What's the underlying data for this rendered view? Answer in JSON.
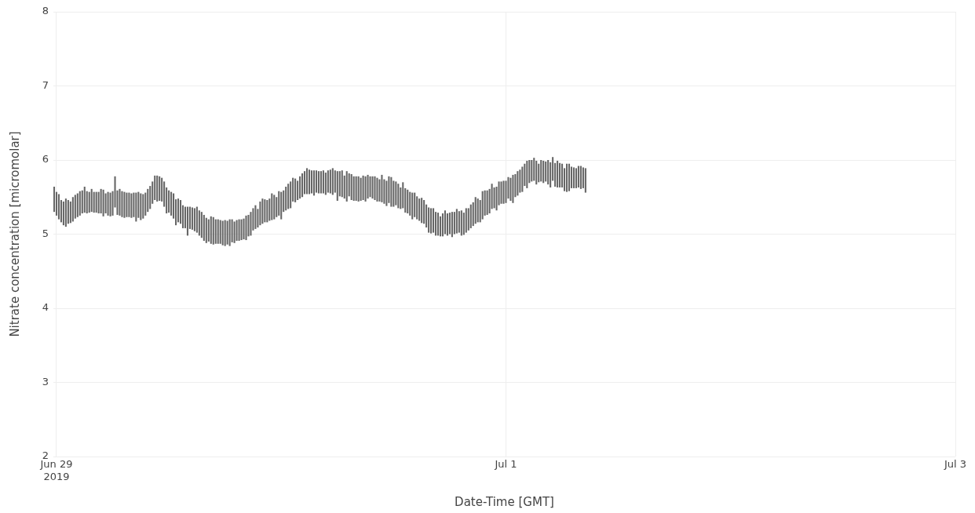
{
  "chart_data": {
    "type": "bar",
    "xlabel": "Date-Time [GMT]",
    "ylabel": "Nitrate concentration [micromolar]",
    "color": "#666666",
    "grid": true,
    "xlim": [
      "2019-06-28T23:40",
      "2019-07-03T00:00"
    ],
    "xticks": [
      {
        "value": "2019-06-29",
        "label": "Jun 29\n2019"
      },
      {
        "value": "2019-07-01",
        "label": "Jul 1"
      },
      {
        "value": "2019-07-03",
        "label": "Jul 3"
      }
    ],
    "ylim": [
      2,
      8
    ],
    "yticks": [
      2,
      3,
      4,
      5,
      6,
      7,
      8
    ],
    "x": [
      "2019-06-28T23:45",
      "2019-06-29T00:00",
      "2019-06-29T00:15",
      "2019-06-29T00:30",
      "2019-06-29T00:45",
      "2019-06-29T01:00",
      "2019-06-29T01:15",
      "2019-06-29T01:30",
      "2019-06-29T01:45",
      "2019-06-29T02:00",
      "2019-06-29T02:15",
      "2019-06-29T02:30",
      "2019-06-29T02:45",
      "2019-06-29T03:00",
      "2019-06-29T03:15",
      "2019-06-29T03:30",
      "2019-06-29T03:45",
      "2019-06-29T04:00",
      "2019-06-29T04:15",
      "2019-06-29T04:30",
      "2019-06-29T04:45",
      "2019-06-29T05:00",
      "2019-06-29T05:15",
      "2019-06-29T05:30",
      "2019-06-29T05:45",
      "2019-06-29T06:00",
      "2019-06-29T06:15",
      "2019-06-29T06:30",
      "2019-06-29T06:45",
      "2019-06-29T07:00",
      "2019-06-29T07:15",
      "2019-06-29T07:30",
      "2019-06-29T07:45",
      "2019-06-29T08:00",
      "2019-06-29T08:15",
      "2019-06-29T08:30",
      "2019-06-29T08:45",
      "2019-06-29T09:00",
      "2019-06-29T09:15",
      "2019-06-29T09:30",
      "2019-06-29T09:45",
      "2019-06-29T10:00",
      "2019-06-29T10:15",
      "2019-06-29T10:30",
      "2019-06-29T10:45",
      "2019-06-29T11:00",
      "2019-06-29T11:15",
      "2019-06-29T11:30",
      "2019-06-29T11:45",
      "2019-06-29T12:00",
      "2019-06-29T12:15",
      "2019-06-29T12:30",
      "2019-06-29T12:45",
      "2019-06-29T13:00",
      "2019-06-29T13:15",
      "2019-06-29T13:30",
      "2019-06-29T13:45",
      "2019-06-29T14:00",
      "2019-06-29T14:15",
      "2019-06-29T14:30",
      "2019-06-29T14:45",
      "2019-06-29T15:00",
      "2019-06-29T15:15",
      "2019-06-29T15:30",
      "2019-06-29T15:45",
      "2019-06-29T16:00",
      "2019-06-29T16:15",
      "2019-06-29T16:30",
      "2019-06-29T16:45",
      "2019-06-29T17:00",
      "2019-06-29T17:15",
      "2019-06-29T17:30",
      "2019-06-29T17:45",
      "2019-06-29T18:00",
      "2019-06-29T18:15",
      "2019-06-29T18:30",
      "2019-06-29T18:45",
      "2019-06-29T19:00",
      "2019-06-29T19:15",
      "2019-06-29T19:30",
      "2019-06-29T19:45",
      "2019-06-29T20:00",
      "2019-06-29T20:15",
      "2019-06-29T20:30",
      "2019-06-29T20:45",
      "2019-06-29T21:00",
      "2019-06-29T21:15",
      "2019-06-29T21:30",
      "2019-06-29T21:45",
      "2019-06-29T22:00",
      "2019-06-29T22:15",
      "2019-06-29T22:30",
      "2019-06-29T22:45",
      "2019-06-29T23:00",
      "2019-06-29T23:15",
      "2019-06-29T23:30",
      "2019-06-29T23:45",
      "2019-06-30T00:00",
      "2019-06-30T00:15",
      "2019-06-30T00:30",
      "2019-06-30T00:45",
      "2019-06-30T01:00",
      "2019-06-30T01:15",
      "2019-06-30T01:30",
      "2019-06-30T01:45",
      "2019-06-30T02:00",
      "2019-06-30T02:15",
      "2019-06-30T02:30",
      "2019-06-30T02:45",
      "2019-06-30T03:00",
      "2019-06-30T03:15",
      "2019-06-30T03:30",
      "2019-06-30T03:45",
      "2019-06-30T04:00",
      "2019-06-30T04:15",
      "2019-06-30T04:30",
      "2019-06-30T04:45",
      "2019-06-30T05:00",
      "2019-06-30T05:15",
      "2019-06-30T05:30",
      "2019-06-30T05:45",
      "2019-06-30T06:00",
      "2019-06-30T06:15",
      "2019-06-30T06:30",
      "2019-06-30T06:45",
      "2019-06-30T07:00",
      "2019-06-30T07:15",
      "2019-06-30T07:30",
      "2019-06-30T07:45",
      "2019-06-30T08:00",
      "2019-06-30T08:15",
      "2019-06-30T08:30",
      "2019-06-30T08:45",
      "2019-06-30T09:00",
      "2019-06-30T09:15",
      "2019-06-30T09:30",
      "2019-06-30T09:45",
      "2019-06-30T10:00",
      "2019-06-30T10:15",
      "2019-06-30T10:30",
      "2019-06-30T10:45",
      "2019-06-30T11:00",
      "2019-06-30T11:15",
      "2019-06-30T11:30",
      "2019-06-30T11:45",
      "2019-06-30T12:00",
      "2019-06-30T12:15",
      "2019-06-30T12:30",
      "2019-06-30T12:45",
      "2019-06-30T13:00",
      "2019-06-30T13:15",
      "2019-06-30T13:30",
      "2019-06-30T13:45",
      "2019-06-30T14:00",
      "2019-06-30T14:15",
      "2019-06-30T14:30",
      "2019-06-30T14:45",
      "2019-06-30T15:00",
      "2019-06-30T15:15",
      "2019-06-30T15:30",
      "2019-06-30T15:45",
      "2019-06-30T16:00",
      "2019-06-30T16:15",
      "2019-06-30T16:30",
      "2019-06-30T16:45",
      "2019-06-30T17:00",
      "2019-06-30T17:15",
      "2019-06-30T17:30",
      "2019-06-30T17:45",
      "2019-06-30T18:00",
      "2019-06-30T18:15",
      "2019-06-30T18:30",
      "2019-06-30T18:45",
      "2019-06-30T19:00",
      "2019-06-30T19:15",
      "2019-06-30T19:30",
      "2019-06-30T19:45",
      "2019-06-30T20:00",
      "2019-06-30T20:15",
      "2019-06-30T20:30",
      "2019-06-30T20:45",
      "2019-06-30T21:00",
      "2019-06-30T21:15",
      "2019-06-30T21:30",
      "2019-06-30T21:45",
      "2019-06-30T22:00",
      "2019-06-30T22:15",
      "2019-06-30T22:30",
      "2019-06-30T22:45",
      "2019-06-30T23:00",
      "2019-06-30T23:15",
      "2019-06-30T23:30",
      "2019-06-30T23:45",
      "2019-07-01T00:00",
      "2019-07-01T00:15",
      "2019-07-01T00:30",
      "2019-07-01T00:45",
      "2019-07-01T01:00",
      "2019-07-01T01:15",
      "2019-07-01T01:30",
      "2019-07-01T01:45",
      "2019-07-01T02:00",
      "2019-07-01T02:15",
      "2019-07-01T02:30",
      "2019-07-01T02:45",
      "2019-07-01T03:00",
      "2019-07-01T03:15",
      "2019-07-01T03:30",
      "2019-07-01T03:45",
      "2019-07-01T04:00",
      "2019-07-01T04:15",
      "2019-07-01T04:30",
      "2019-07-01T04:45",
      "2019-07-01T05:00",
      "2019-07-01T05:15",
      "2019-07-01T05:30",
      "2019-07-01T05:45",
      "2019-07-01T06:00",
      "2019-07-01T06:15",
      "2019-07-01T06:30",
      "2019-07-01T06:45",
      "2019-07-01T07:00",
      "2019-07-01T07:15",
      "2019-07-01T07:30",
      "2019-07-01T07:45",
      "2019-07-01T08:00",
      "2019-07-01T08:15",
      "2019-07-01T08:30"
    ],
    "base": [
      5.3,
      5.25,
      5.2,
      5.16,
      5.12,
      5.1,
      5.14,
      5.15,
      5.17,
      5.21,
      5.23,
      5.25,
      5.28,
      5.29,
      5.28,
      5.29,
      5.3,
      5.29,
      5.29,
      5.28,
      5.28,
      5.24,
      5.28,
      5.25,
      5.24,
      5.25,
      5.36,
      5.26,
      5.25,
      5.23,
      5.22,
      5.23,
      5.23,
      5.22,
      5.23,
      5.17,
      5.22,
      5.19,
      5.21,
      5.25,
      5.3,
      5.34,
      5.41,
      5.46,
      5.44,
      5.45,
      5.44,
      5.37,
      5.28,
      5.29,
      5.25,
      5.21,
      5.12,
      5.16,
      5.14,
      5.08,
      5.08,
      4.98,
      5.07,
      5.06,
      5.04,
      5.02,
      4.98,
      4.95,
      4.91,
      4.88,
      4.9,
      4.87,
      4.86,
      4.87,
      4.87,
      4.87,
      4.85,
      4.84,
      4.86,
      4.84,
      4.89,
      4.88,
      4.91,
      4.91,
      4.92,
      4.93,
      4.92,
      4.97,
      4.98,
      5.05,
      5.07,
      5.09,
      5.12,
      5.14,
      5.16,
      5.16,
      5.18,
      5.19,
      5.2,
      5.23,
      5.25,
      5.2,
      5.3,
      5.32,
      5.34,
      5.35,
      5.44,
      5.43,
      5.46,
      5.48,
      5.5,
      5.54,
      5.54,
      5.54,
      5.55,
      5.52,
      5.56,
      5.55,
      5.55,
      5.55,
      5.53,
      5.56,
      5.55,
      5.53,
      5.56,
      5.45,
      5.51,
      5.5,
      5.48,
      5.44,
      5.51,
      5.46,
      5.45,
      5.45,
      5.44,
      5.45,
      5.46,
      5.44,
      5.48,
      5.5,
      5.48,
      5.46,
      5.44,
      5.44,
      5.43,
      5.41,
      5.38,
      5.42,
      5.37,
      5.37,
      5.39,
      5.35,
      5.34,
      5.35,
      5.29,
      5.28,
      5.25,
      5.2,
      5.23,
      5.2,
      5.18,
      5.15,
      5.14,
      5.09,
      5.02,
      5.01,
      5.02,
      4.98,
      4.98,
      4.97,
      4.97,
      5.0,
      4.98,
      5.0,
      4.96,
      5.0,
      5.01,
      5.02,
      4.98,
      4.99,
      5.02,
      5.05,
      5.08,
      5.11,
      5.14,
      5.16,
      5.16,
      5.2,
      5.25,
      5.26,
      5.28,
      5.34,
      5.35,
      5.32,
      5.39,
      5.41,
      5.41,
      5.42,
      5.48,
      5.45,
      5.42,
      5.5,
      5.52,
      5.56,
      5.57,
      5.65,
      5.62,
      5.69,
      5.71,
      5.72,
      5.67,
      5.7,
      5.71,
      5.69,
      5.71,
      5.67,
      5.63,
      5.72,
      5.64,
      5.63,
      5.63,
      5.63,
      5.58,
      5.57,
      5.58,
      5.62,
      5.62,
      5.62,
      5.63,
      5.61,
      5.62,
      5.56
    ],
    "values": [
      0.34,
      0.32,
      0.34,
      0.3,
      0.32,
      0.38,
      0.32,
      0.29,
      0.33,
      0.32,
      0.32,
      0.33,
      0.31,
      0.35,
      0.3,
      0.28,
      0.31,
      0.28,
      0.28,
      0.29,
      0.33,
      0.36,
      0.27,
      0.32,
      0.32,
      0.33,
      0.42,
      0.33,
      0.36,
      0.35,
      0.35,
      0.33,
      0.33,
      0.33,
      0.33,
      0.39,
      0.35,
      0.36,
      0.33,
      0.31,
      0.31,
      0.31,
      0.3,
      0.33,
      0.35,
      0.33,
      0.32,
      0.34,
      0.35,
      0.3,
      0.32,
      0.34,
      0.35,
      0.32,
      0.32,
      0.31,
      0.29,
      0.39,
      0.3,
      0.3,
      0.31,
      0.35,
      0.34,
      0.35,
      0.35,
      0.34,
      0.3,
      0.37,
      0.37,
      0.33,
      0.33,
      0.32,
      0.33,
      0.35,
      0.32,
      0.36,
      0.31,
      0.29,
      0.28,
      0.29,
      0.28,
      0.28,
      0.33,
      0.29,
      0.32,
      0.3,
      0.32,
      0.25,
      0.32,
      0.34,
      0.31,
      0.3,
      0.3,
      0.36,
      0.33,
      0.27,
      0.33,
      0.37,
      0.29,
      0.32,
      0.34,
      0.36,
      0.32,
      0.32,
      0.26,
      0.3,
      0.32,
      0.31,
      0.35,
      0.33,
      0.31,
      0.34,
      0.3,
      0.3,
      0.3,
      0.31,
      0.3,
      0.3,
      0.32,
      0.36,
      0.3,
      0.4,
      0.34,
      0.36,
      0.31,
      0.41,
      0.31,
      0.35,
      0.33,
      0.33,
      0.34,
      0.31,
      0.33,
      0.34,
      0.32,
      0.28,
      0.3,
      0.32,
      0.32,
      0.3,
      0.37,
      0.33,
      0.34,
      0.36,
      0.4,
      0.35,
      0.32,
      0.33,
      0.29,
      0.35,
      0.33,
      0.32,
      0.32,
      0.36,
      0.33,
      0.31,
      0.3,
      0.34,
      0.32,
      0.31,
      0.34,
      0.34,
      0.33,
      0.32,
      0.31,
      0.27,
      0.31,
      0.32,
      0.3,
      0.29,
      0.34,
      0.3,
      0.33,
      0.29,
      0.34,
      0.3,
      0.33,
      0.3,
      0.32,
      0.32,
      0.36,
      0.32,
      0.3,
      0.38,
      0.34,
      0.33,
      0.33,
      0.34,
      0.28,
      0.32,
      0.32,
      0.3,
      0.31,
      0.3,
      0.29,
      0.31,
      0.38,
      0.31,
      0.33,
      0.31,
      0.34,
      0.3,
      0.37,
      0.31,
      0.29,
      0.31,
      0.32,
      0.25,
      0.29,
      0.3,
      0.27,
      0.33,
      0.34,
      0.32,
      0.32,
      0.36,
      0.33,
      0.32,
      0.31,
      0.38,
      0.37,
      0.29,
      0.28,
      0.27,
      0.29,
      0.31,
      0.28,
      0.33
    ]
  }
}
